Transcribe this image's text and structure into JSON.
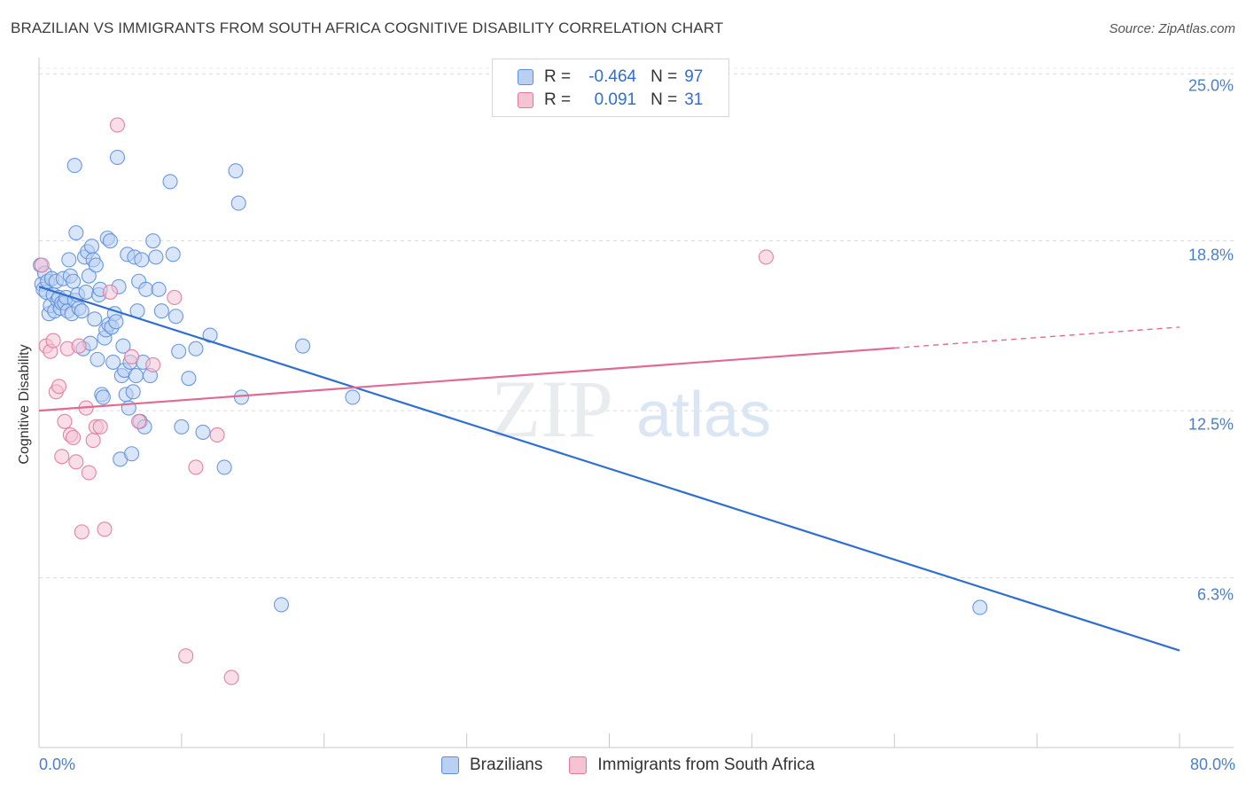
{
  "chart_data": {
    "type": "scatter",
    "title": "BRAZILIAN VS IMMIGRANTS FROM SOUTH AFRICA COGNITIVE DISABILITY CORRELATION CHART",
    "source": "Source: ZipAtlas.com",
    "xlabel": "",
    "ylabel": "Cognitive Disability",
    "x_tick_labels": [
      "0.0%",
      "80.0%"
    ],
    "y_tick_labels": [
      "25.0%",
      "18.8%",
      "12.5%",
      "6.3%"
    ],
    "y_tick_values": [
      25.0,
      18.8,
      12.5,
      6.3
    ],
    "xlim": [
      0,
      80
    ],
    "ylim": [
      0,
      25.6
    ],
    "grid": true,
    "legend_position": "top-center",
    "watermark": "ZIPatlas",
    "series": [
      {
        "name": "Brazilians",
        "color": "#5b8fdc",
        "fill": "#b9d0f2",
        "R_label": "R =",
        "R": "-0.464",
        "N_label": "N =",
        "N": "97",
        "trend": {
          "x0": 0,
          "y0": 17.1,
          "x1": 80,
          "y1": 3.6,
          "dashed_from": null
        },
        "points": [
          [
            0.1,
            17.9
          ],
          [
            0.2,
            17.2
          ],
          [
            0.3,
            17.0
          ],
          [
            0.4,
            17.6
          ],
          [
            0.5,
            16.9
          ],
          [
            0.6,
            17.3
          ],
          [
            0.7,
            16.1
          ],
          [
            0.8,
            16.4
          ],
          [
            0.9,
            17.4
          ],
          [
            1.0,
            16.8
          ],
          [
            1.1,
            16.2
          ],
          [
            1.2,
            17.3
          ],
          [
            1.3,
            16.6
          ],
          [
            1.4,
            16.7
          ],
          [
            1.5,
            16.3
          ],
          [
            1.6,
            16.5
          ],
          [
            1.7,
            17.4
          ],
          [
            1.8,
            16.5
          ],
          [
            1.9,
            16.7
          ],
          [
            2.0,
            16.2
          ],
          [
            2.1,
            18.1
          ],
          [
            2.2,
            17.5
          ],
          [
            2.3,
            16.1
          ],
          [
            2.4,
            17.3
          ],
          [
            2.5,
            16.6
          ],
          [
            2.6,
            19.1
          ],
          [
            2.7,
            16.8
          ],
          [
            2.8,
            16.3
          ],
          [
            3.0,
            16.2
          ],
          [
            3.1,
            14.8
          ],
          [
            3.2,
            18.2
          ],
          [
            3.3,
            16.9
          ],
          [
            3.4,
            18.4
          ],
          [
            3.5,
            17.5
          ],
          [
            3.6,
            15.0
          ],
          [
            3.7,
            18.6
          ],
          [
            3.8,
            18.1
          ],
          [
            3.9,
            15.9
          ],
          [
            4.0,
            17.9
          ],
          [
            4.1,
            14.4
          ],
          [
            4.2,
            16.8
          ],
          [
            4.3,
            17.0
          ],
          [
            4.4,
            13.1
          ],
          [
            4.5,
            13.0
          ],
          [
            4.6,
            15.2
          ],
          [
            4.7,
            15.5
          ],
          [
            4.8,
            18.9
          ],
          [
            4.9,
            15.7
          ],
          [
            5.0,
            18.8
          ],
          [
            5.1,
            15.6
          ],
          [
            5.2,
            14.3
          ],
          [
            5.3,
            16.1
          ],
          [
            5.4,
            15.8
          ],
          [
            5.5,
            21.9
          ],
          [
            5.6,
            17.1
          ],
          [
            5.7,
            10.7
          ],
          [
            5.8,
            13.8
          ],
          [
            5.9,
            14.9
          ],
          [
            6.0,
            14.0
          ],
          [
            6.1,
            13.1
          ],
          [
            6.2,
            18.3
          ],
          [
            6.3,
            12.6
          ],
          [
            6.4,
            14.3
          ],
          [
            6.5,
            10.9
          ],
          [
            6.6,
            13.2
          ],
          [
            6.7,
            18.2
          ],
          [
            6.8,
            13.8
          ],
          [
            6.9,
            16.2
          ],
          [
            7.0,
            17.3
          ],
          [
            7.1,
            12.1
          ],
          [
            7.2,
            18.1
          ],
          [
            7.3,
            14.3
          ],
          [
            7.4,
            11.9
          ],
          [
            7.5,
            17.0
          ],
          [
            7.8,
            13.8
          ],
          [
            8.0,
            18.8
          ],
          [
            8.2,
            18.2
          ],
          [
            8.4,
            17.0
          ],
          [
            8.6,
            16.2
          ],
          [
            9.2,
            21.0
          ],
          [
            9.4,
            18.3
          ],
          [
            9.6,
            16.0
          ],
          [
            9.8,
            14.7
          ],
          [
            10.0,
            11.9
          ],
          [
            10.5,
            13.7
          ],
          [
            11.0,
            14.8
          ],
          [
            11.5,
            11.7
          ],
          [
            12.0,
            15.3
          ],
          [
            13.0,
            10.4
          ],
          [
            14.0,
            20.2
          ],
          [
            2.5,
            21.6
          ],
          [
            13.8,
            21.4
          ],
          [
            14.2,
            13.0
          ],
          [
            17.0,
            5.3
          ],
          [
            18.5,
            14.9
          ],
          [
            22.0,
            13.0
          ],
          [
            66.0,
            5.2
          ]
        ]
      },
      {
        "name": "Immigrants from South Africa",
        "color": "#e07898",
        "fill": "#f6c3d3",
        "R_label": "R =",
        "R": "0.091",
        "N_label": "N =",
        "N": "31",
        "trend": {
          "x0": 0,
          "y0": 12.5,
          "x1": 80,
          "y1": 15.6,
          "dashed_from": 60
        },
        "points": [
          [
            0.2,
            17.9
          ],
          [
            0.5,
            14.9
          ],
          [
            0.8,
            14.7
          ],
          [
            1.0,
            15.1
          ],
          [
            1.2,
            13.2
          ],
          [
            1.4,
            13.4
          ],
          [
            1.6,
            10.8
          ],
          [
            1.8,
            12.1
          ],
          [
            2.0,
            14.8
          ],
          [
            2.2,
            11.6
          ],
          [
            2.4,
            11.5
          ],
          [
            2.6,
            10.6
          ],
          [
            2.8,
            14.9
          ],
          [
            3.0,
            8.0
          ],
          [
            3.3,
            12.6
          ],
          [
            3.5,
            10.2
          ],
          [
            3.8,
            11.4
          ],
          [
            4.0,
            11.9
          ],
          [
            4.3,
            11.9
          ],
          [
            4.6,
            8.1
          ],
          [
            5.0,
            16.9
          ],
          [
            5.5,
            23.1
          ],
          [
            6.5,
            14.5
          ],
          [
            7.0,
            12.1
          ],
          [
            8.0,
            14.2
          ],
          [
            9.5,
            16.7
          ],
          [
            10.3,
            3.4
          ],
          [
            11.0,
            10.4
          ],
          [
            12.5,
            11.6
          ],
          [
            13.5,
            2.6
          ],
          [
            51.0,
            18.2
          ]
        ]
      }
    ]
  }
}
